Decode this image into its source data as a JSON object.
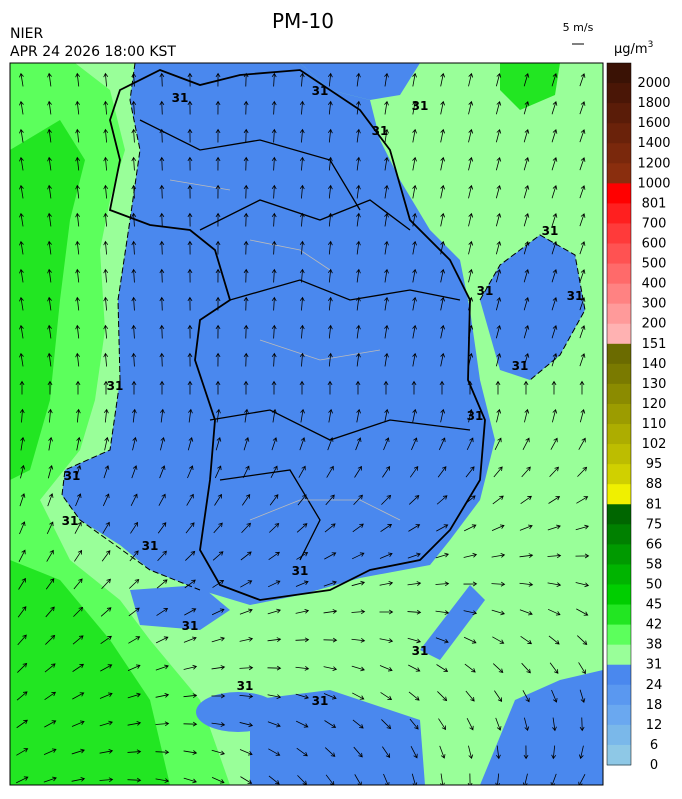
{
  "header": {
    "title": "PM-10",
    "agency": "NIER",
    "time": "APR 24 2026 18:00 KST",
    "wind_scale": "5 m/s",
    "unit_base": "μg/m",
    "unit_exp": "3"
  },
  "contour_label": "31",
  "legend": {
    "levels": [
      "2000",
      "1800",
      "1600",
      "1400",
      "1200",
      "1000",
      "801",
      "700",
      "600",
      "500",
      "400",
      "300",
      "200",
      "151",
      "140",
      "130",
      "120",
      "110",
      "102",
      "95",
      "88",
      "81",
      "75",
      "66",
      "58",
      "50",
      "45",
      "42",
      "38",
      "31",
      "24",
      "18",
      "12",
      "6",
      "0"
    ],
    "colors": [
      "#3a1205",
      "#4a1606",
      "#5a1c08",
      "#6a220a",
      "#7a280c",
      "#8a2e0e",
      "#ff0000",
      "#ff1f1f",
      "#ff3a3a",
      "#ff5252",
      "#ff6a6a",
      "#ff8282",
      "#ff9a9a",
      "#ffb2b2",
      "#6b6b00",
      "#7a7a00",
      "#8b8b00",
      "#9c9c00",
      "#adad00",
      "#bdbd00",
      "#d0d000",
      "#f0f000",
      "#006600",
      "#008000",
      "#009a00",
      "#00b400",
      "#00ce00",
      "#22e622",
      "#5cff5c",
      "#99ff99",
      "#4a88ee",
      "#5a98f0",
      "#6aa8f0",
      "#7ab8ea",
      "#8ec8e6"
    ]
  }
}
